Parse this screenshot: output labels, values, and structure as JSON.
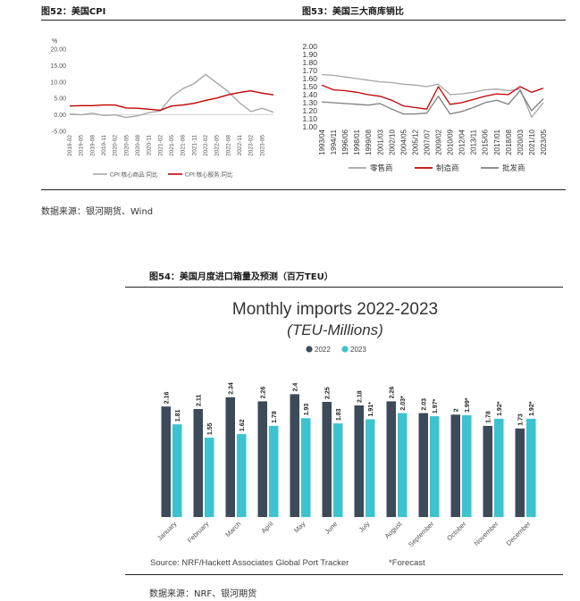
{
  "fig52": {
    "title": "图52：美国CPI",
    "source_note": "数据来源：银河期货、Wind"
  },
  "fig53": {
    "title": "图53：美国三大商库销比"
  },
  "fig54": {
    "title": "图54：美国月度进口箱量及预测（百万TEU）",
    "source_note": "数据来源：NRF、银河期货"
  },
  "chart_data": [
    {
      "id": "cpi",
      "type": "line",
      "ylabel": "%",
      "ylim": [
        -5,
        20
      ],
      "yticks": [
        "20.00",
        "15.00",
        "10.00",
        "5.00",
        "0.00",
        "-5.00"
      ],
      "x": [
        "2019-02",
        "2019-05",
        "2019-08",
        "2019-11",
        "2020-02",
        "2020-05",
        "2020-08",
        "2020-11",
        "2021-02",
        "2021-05",
        "2021-08",
        "2021-11",
        "2022-02",
        "2022-05",
        "2022-08",
        "2022-11",
        "2023-02",
        "2023-05",
        "2023-07"
      ],
      "xtick_labels": [
        "2019-02",
        "2019-05",
        "2019-08",
        "2019-11",
        "2020-02",
        "2020-05",
        "2020-08",
        "2020-11",
        "2021-02",
        "2021-05",
        "2021-08",
        "2021-11",
        "2022-02",
        "2022-05",
        "2022-08",
        "2022-11",
        "2023-02",
        "2023-05"
      ],
      "series": [
        {
          "name": "CPI:核心商品:同比",
          "color": "#a6a6a6",
          "values": [
            0.3,
            0.0,
            0.5,
            -0.2,
            0.0,
            -0.8,
            -0.3,
            0.7,
            1.2,
            5.5,
            8.0,
            9.5,
            12.3,
            9.7,
            7.1,
            3.7,
            1.0,
            2.0,
            0.8
          ]
        },
        {
          "name": "CPI:核心服务:同比",
          "color": "#c00000",
          "values": [
            2.7,
            2.8,
            2.8,
            3.0,
            3.0,
            2.1,
            2.0,
            1.7,
            1.4,
            2.7,
            3.0,
            3.5,
            4.4,
            5.1,
            6.1,
            6.8,
            7.3,
            6.6,
            6.1
          ]
        }
      ]
    },
    {
      "id": "inventory_sales",
      "type": "line",
      "ylim": [
        1.0,
        2.0
      ],
      "yticks": [
        "2.00",
        "1.90",
        "1.80",
        "1.70",
        "1.60",
        "1.50",
        "1.40",
        "1.30",
        "1.20",
        "1.10",
        "1.00"
      ],
      "x": [
        "1993/04",
        "1994/11",
        "1996/06",
        "1998/01",
        "1999/08",
        "2001/03",
        "2002/10",
        "2004/05",
        "2005/12",
        "2007/07",
        "2009/02",
        "2010/09",
        "2012/04",
        "2013/11",
        "2015/06",
        "2017/01",
        "2018/08",
        "2020/03",
        "2021/10",
        "2023/05"
      ],
      "xtick_labels": [
        "1993/04",
        "1994/11",
        "1996/06",
        "1998/01",
        "1999/08",
        "2001/03",
        "2002/10",
        "2004/05",
        "2005/12",
        "2007/07",
        "2009/02",
        "2010/09",
        "2012/04",
        "2013/11",
        "2015/06",
        "2017/01",
        "2018/08",
        "2020/03",
        "2021/10",
        "2023/05"
      ],
      "series": [
        {
          "name": "零售商",
          "color": "#a6a6a6",
          "values": [
            1.65,
            1.64,
            1.62,
            1.6,
            1.58,
            1.56,
            1.55,
            1.53,
            1.52,
            1.5,
            1.53,
            1.4,
            1.41,
            1.43,
            1.46,
            1.47,
            1.45,
            1.47,
            1.12,
            1.3
          ]
        },
        {
          "name": "制造商",
          "color": "#c00000",
          "values": [
            1.52,
            1.46,
            1.45,
            1.43,
            1.4,
            1.38,
            1.33,
            1.26,
            1.24,
            1.22,
            1.5,
            1.28,
            1.3,
            1.34,
            1.38,
            1.41,
            1.4,
            1.5,
            1.43,
            1.48
          ]
        },
        {
          "name": "批发商",
          "color": "#7f7f7f",
          "values": [
            1.31,
            1.3,
            1.29,
            1.28,
            1.27,
            1.29,
            1.22,
            1.16,
            1.16,
            1.17,
            1.38,
            1.16,
            1.19,
            1.24,
            1.3,
            1.33,
            1.28,
            1.45,
            1.2,
            1.35
          ]
        }
      ]
    },
    {
      "id": "monthly_imports",
      "type": "bar",
      "title": "Monthly imports 2022-2023",
      "subtitle": "(TEU-Millions)",
      "categories": [
        "January",
        "February",
        "March",
        "April",
        "May",
        "June",
        "July",
        "August",
        "September",
        "October",
        "November",
        "December"
      ],
      "ylim": [
        0,
        3.0
      ],
      "series": [
        {
          "name": "2022",
          "color": "#3d4a5a",
          "values": [
            2.16,
            2.11,
            2.34,
            2.26,
            2.4,
            2.25,
            2.18,
            2.26,
            2.03,
            2.0,
            1.78,
            1.73
          ],
          "labels": [
            "2.16",
            "2.11",
            "2.34",
            "2.26",
            "2.4",
            "2.25",
            "2.18",
            "2.26",
            "2.03",
            "2",
            "1.78",
            "1.73"
          ]
        },
        {
          "name": "2023",
          "color": "#3cc3cf",
          "values": [
            1.81,
            1.55,
            1.62,
            1.78,
            1.93,
            1.83,
            1.91,
            2.03,
            1.97,
            1.99,
            1.92,
            1.92
          ],
          "labels": [
            "1.81",
            "1.55",
            "1.62",
            "1.78",
            "1.93",
            "1.83",
            "1.91*",
            "2.03*",
            "1.97*",
            "1.99*",
            "1.92*",
            "1.92*"
          ]
        }
      ],
      "source": "Source: NRF/Hackett Associates Global Port Tracker",
      "footnote": "*Forecast"
    }
  ]
}
